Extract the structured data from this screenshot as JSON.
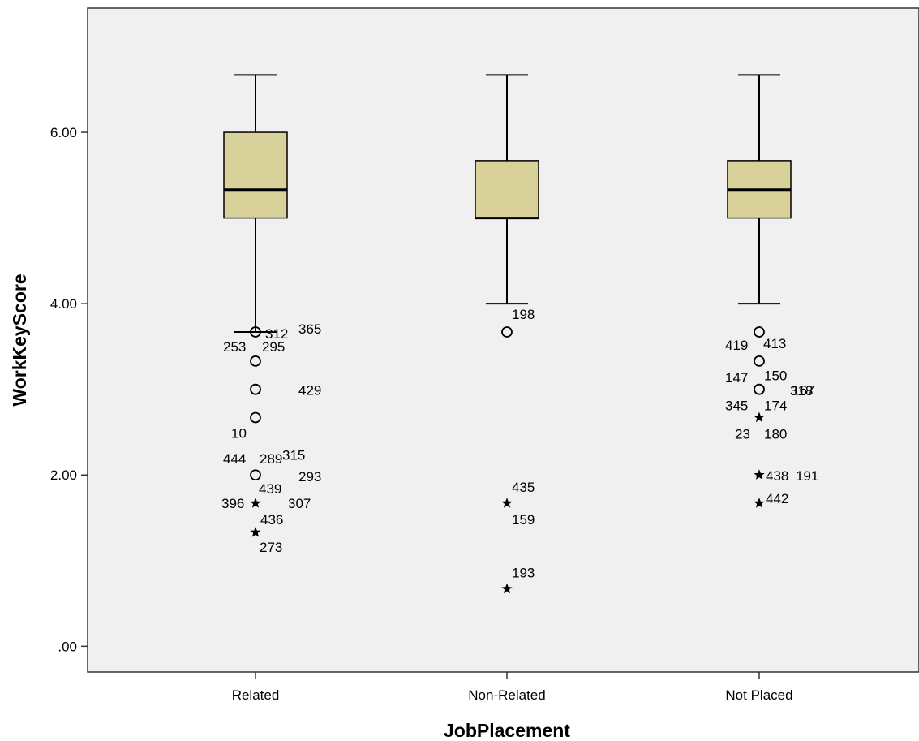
{
  "chart_data": {
    "type": "boxplot",
    "xlabel": "JobPlacement",
    "ylabel": "WorkKeyScore",
    "ylim": [
      -0.3,
      7.45
    ],
    "y_ticks": [
      {
        "value": 0,
        "label": ".00"
      },
      {
        "value": 2,
        "label": "2.00"
      },
      {
        "value": 4,
        "label": "4.00"
      },
      {
        "value": 6,
        "label": "6.00"
      }
    ],
    "box_fill_color": "#d8d19a",
    "plot_background": "#f0f0f0",
    "grid": false,
    "legend": "none",
    "categories": [
      "Related",
      "Non-Related",
      "Not Placed"
    ],
    "boxes": [
      {
        "category": "Related",
        "whisker_low": 3.67,
        "q1": 5.0,
        "median": 5.33,
        "q3": 6.0,
        "whisker_high": 6.67,
        "outliers": [
          {
            "label": "312",
            "y": 3.67,
            "kind": "circle"
          },
          {
            "label": "365",
            "y": 3.33,
            "kind": "circle"
          },
          {
            "label": "253",
            "y": 3.33,
            "kind": "circle"
          },
          {
            "label": "295",
            "y": 3.33,
            "kind": "circle"
          },
          {
            "label": "429",
            "y": 3.0,
            "kind": "circle"
          },
          {
            "label": "10",
            "y": 2.67,
            "kind": "circle"
          },
          {
            "label": "315",
            "y": 2.67,
            "kind": "circle"
          },
          {
            "label": "444",
            "y": 2.0,
            "kind": "circle"
          },
          {
            "label": "289",
            "y": 2.0,
            "kind": "circle"
          },
          {
            "label": "293",
            "y": 2.0,
            "kind": "circle"
          },
          {
            "label": "439",
            "y": 1.67,
            "kind": "star"
          },
          {
            "label": "396",
            "y": 1.67,
            "kind": "star"
          },
          {
            "label": "307",
            "y": 1.67,
            "kind": "star"
          },
          {
            "label": "436",
            "y": 1.67,
            "kind": "star"
          },
          {
            "label": "273",
            "y": 1.33,
            "kind": "star"
          }
        ]
      },
      {
        "category": "Non-Related",
        "whisker_low": 4.0,
        "q1": 5.0,
        "median": 5.0,
        "q3": 5.67,
        "whisker_high": 6.67,
        "outliers": [
          {
            "label": "198",
            "y": 3.67,
            "kind": "circle"
          },
          {
            "label": "435",
            "y": 1.67,
            "kind": "star"
          },
          {
            "label": "159",
            "y": 1.67,
            "kind": "star"
          },
          {
            "label": "193",
            "y": 0.67,
            "kind": "star"
          }
        ]
      },
      {
        "category": "Not Placed",
        "whisker_low": 4.0,
        "q1": 5.0,
        "median": 5.33,
        "q3": 5.67,
        "whisker_high": 6.67,
        "outliers": [
          {
            "label": "419",
            "y": 3.67,
            "kind": "circle"
          },
          {
            "label": "413",
            "y": 3.67,
            "kind": "circle"
          },
          {
            "label": "318",
            "y": 3.33,
            "kind": "circle"
          },
          {
            "label": "147",
            "y": 3.33,
            "kind": "circle"
          },
          {
            "label": "150",
            "y": 3.0,
            "kind": "circle"
          },
          {
            "label": "167",
            "y": 3.0,
            "kind": "circle"
          },
          {
            "label": "345",
            "y": 3.0,
            "kind": "circle"
          },
          {
            "label": "174",
            "y": 3.0,
            "kind": "circle"
          },
          {
            "label": "23",
            "y": 2.67,
            "kind": "star"
          },
          {
            "label": "180",
            "y": 2.67,
            "kind": "star"
          },
          {
            "label": "438",
            "y": 2.0,
            "kind": "star"
          },
          {
            "label": "191",
            "y": 2.0,
            "kind": "star"
          },
          {
            "label": "442",
            "y": 1.67,
            "kind": "star"
          }
        ]
      }
    ]
  }
}
